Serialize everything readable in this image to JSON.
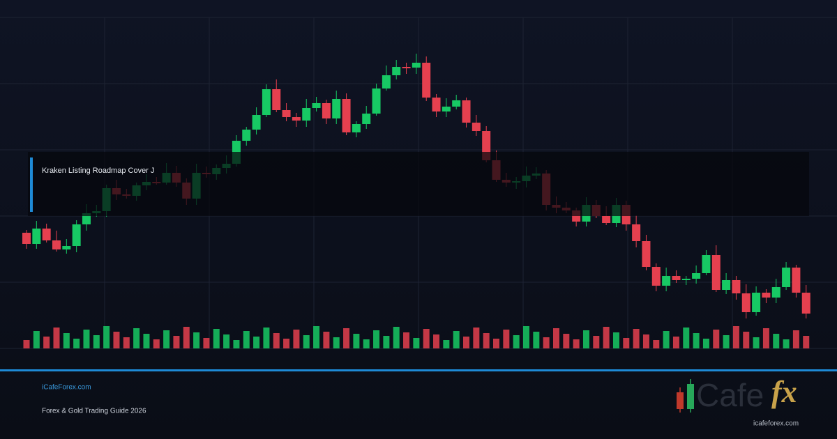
{
  "banner": {
    "title": "Kraken Listing Roadmap Cover J",
    "site": "iCafeForex.com",
    "subtitle": "Forex & Gold Trading Guide 2026",
    "logo": {
      "wordmark": "Cafe",
      "mark": "fx",
      "url": "icafeforex.com"
    }
  }
}
